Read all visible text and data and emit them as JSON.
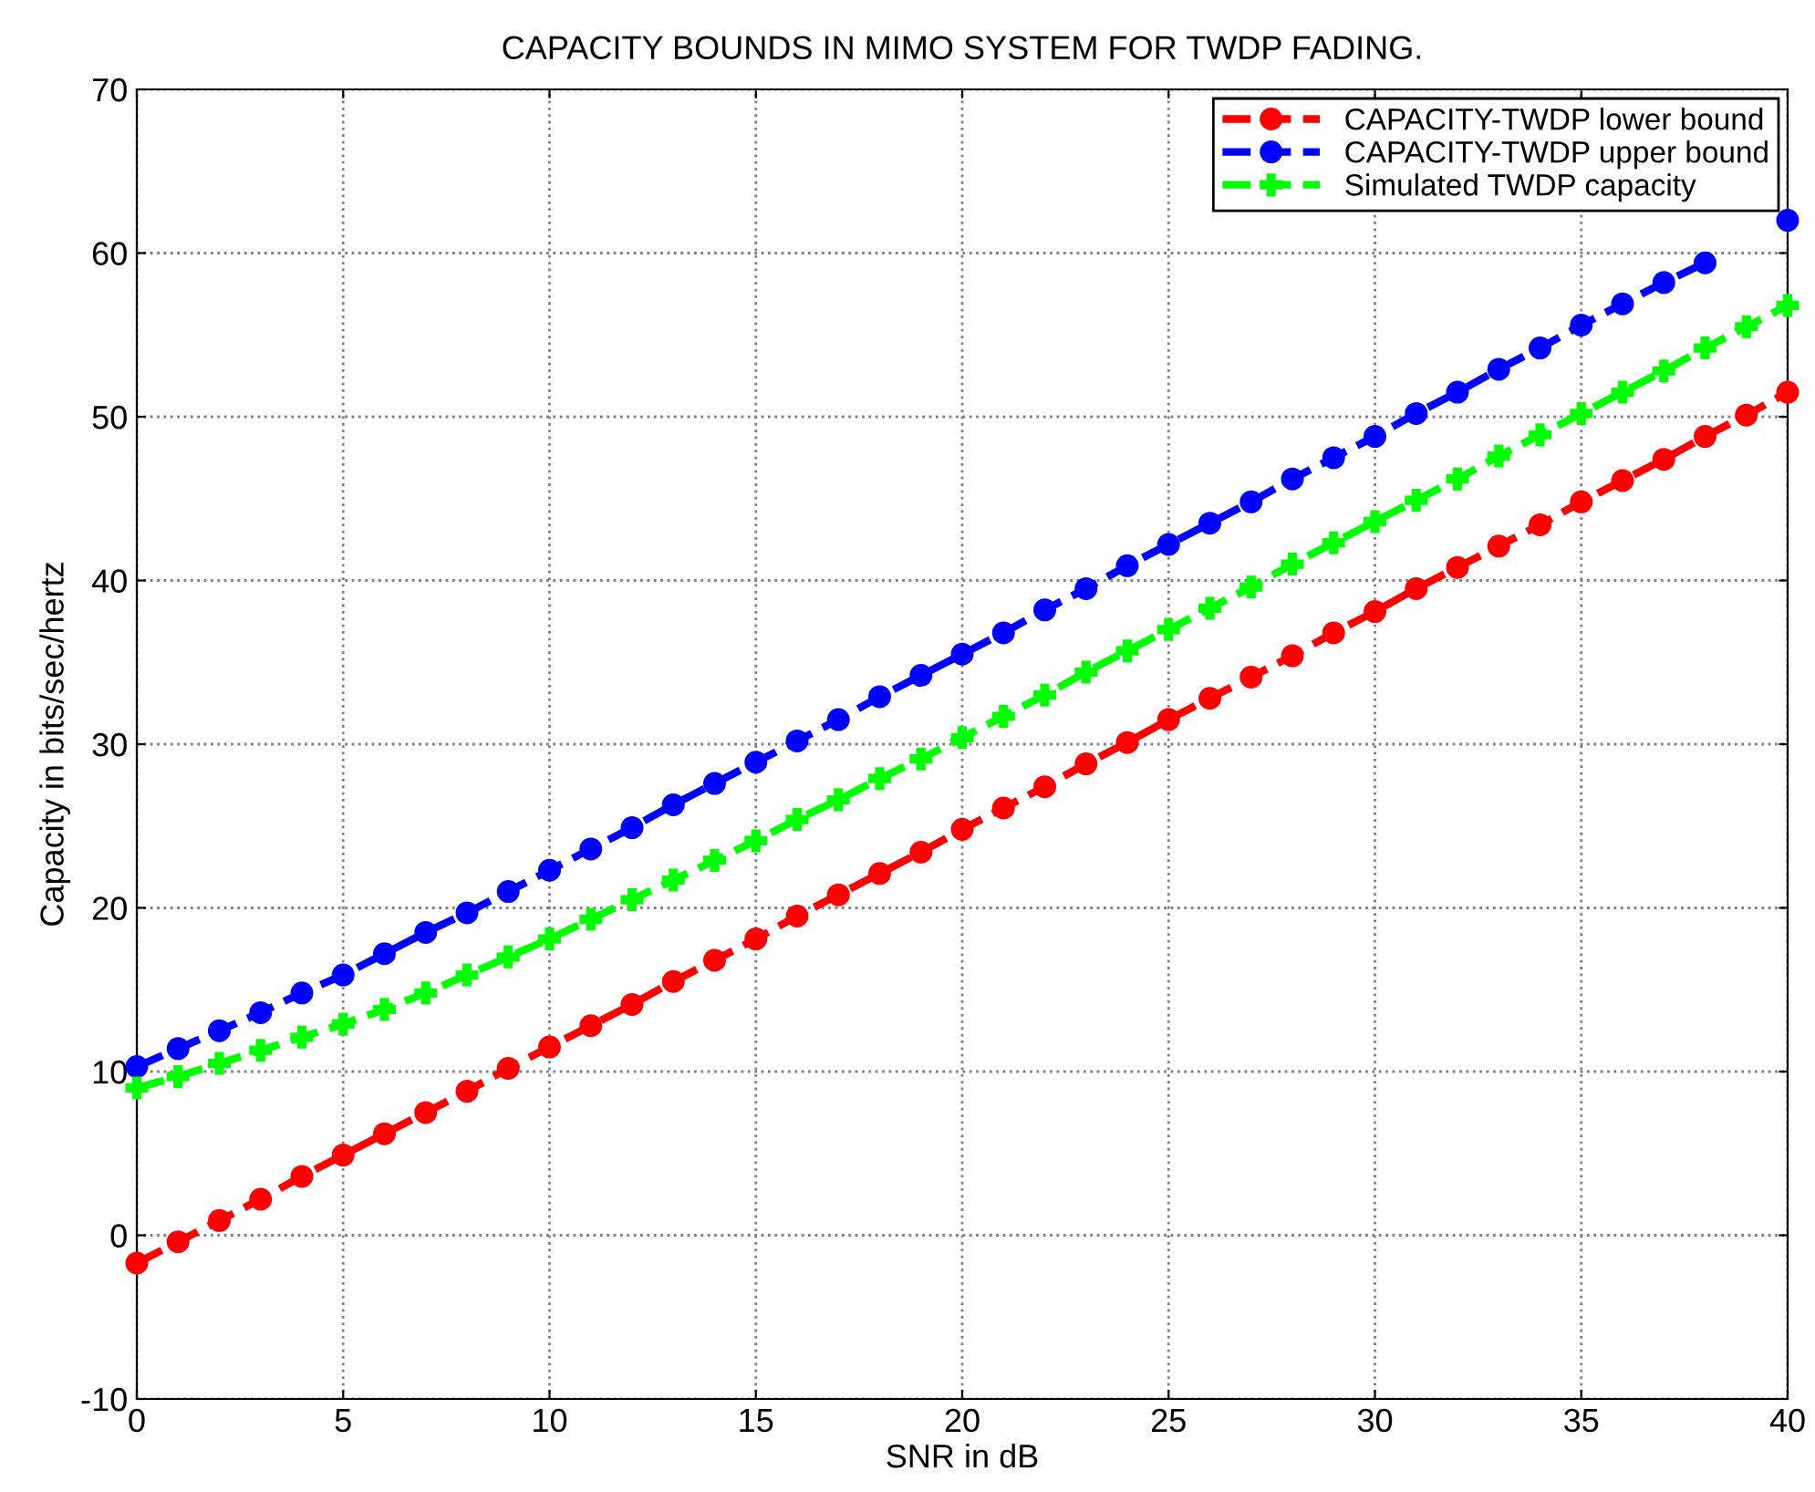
{
  "chart_data": {
    "type": "line",
    "title": "CAPACITY BOUNDS IN MIMO SYSTEM FOR TWDP FADING.",
    "xlabel": "SNR in dB",
    "ylabel": "Capacity in bits/sec/hertz",
    "x": [
      0,
      1,
      2,
      3,
      4,
      5,
      6,
      7,
      8,
      9,
      10,
      11,
      12,
      13,
      14,
      15,
      16,
      17,
      18,
      19,
      20,
      21,
      22,
      23,
      24,
      25,
      26,
      27,
      28,
      29,
      30,
      31,
      32,
      33,
      34,
      35,
      36,
      37,
      38,
      39,
      40
    ],
    "series": [
      {
        "name": "CAPACITY-TWDP lower bound",
        "color": "#ff0000",
        "marker": "circle",
        "values": [
          -1.7,
          -0.4,
          0.9,
          2.2,
          3.6,
          4.9,
          6.2,
          7.5,
          8.8,
          10.2,
          11.5,
          12.8,
          14.1,
          15.5,
          16.8,
          18.1,
          19.5,
          20.8,
          22.1,
          23.4,
          24.8,
          26.1,
          27.4,
          28.8,
          30.1,
          31.5,
          32.8,
          34.1,
          35.4,
          36.8,
          38.1,
          39.5,
          40.8,
          42.1,
          43.4,
          44.8,
          46.1,
          47.4,
          48.8,
          50.1,
          51.5
        ]
      },
      {
        "name": "CAPACITY-TWDP upper bound",
        "color": "#0000ff",
        "marker": "circle",
        "values": [
          10.3,
          11.4,
          12.5,
          13.6,
          14.8,
          15.9,
          17.2,
          18.5,
          19.7,
          21.0,
          22.3,
          23.6,
          24.9,
          26.3,
          27.6,
          28.9,
          30.2,
          31.5,
          32.9,
          34.2,
          35.5,
          36.8,
          38.2,
          39.5,
          40.9,
          42.2,
          43.5,
          44.8,
          46.2,
          47.5,
          48.8,
          50.2,
          51.5,
          52.9,
          54.2,
          55.6,
          56.9,
          58.2,
          59.4,
          null,
          62.0
        ]
      },
      {
        "name": "Simulated TWDP capacity",
        "color": "#00ff00",
        "marker": "cross",
        "values": [
          9.0,
          9.7,
          10.5,
          11.3,
          12.1,
          12.9,
          13.8,
          14.8,
          15.9,
          17.0,
          18.1,
          19.3,
          20.5,
          21.7,
          22.9,
          24.1,
          25.4,
          26.6,
          27.9,
          29.1,
          30.4,
          31.7,
          33.0,
          34.4,
          35.7,
          37.0,
          38.3,
          39.6,
          41.0,
          42.3,
          43.6,
          44.9,
          46.2,
          47.6,
          48.9,
          50.2,
          51.5,
          52.8,
          54.2,
          55.5,
          56.8
        ]
      }
    ],
    "line_style": "dashed",
    "grid": true,
    "legend": "top right",
    "xlim": [
      0,
      40
    ],
    "xticks": [
      0,
      5,
      10,
      15,
      20,
      25,
      30,
      35,
      40
    ],
    "ylim": [
      -10,
      70
    ],
    "yticks": [
      -10,
      0,
      10,
      20,
      30,
      40,
      50,
      60,
      70
    ]
  }
}
